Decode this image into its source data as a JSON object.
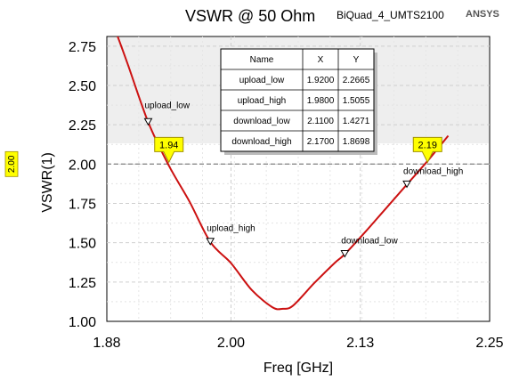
{
  "chart_data": {
    "type": "line",
    "title": "VSWR @ 50 Ohm",
    "subtitle": "BiQuad_4_UMTS2100",
    "brand": "ANSYS",
    "xlabel": "Freq [GHz]",
    "ylabel": "VSWR(1)",
    "xlim": [
      1.88,
      2.25
    ],
    "ylim": [
      1.0,
      2.8
    ],
    "xticks": [
      "1.88",
      "2.00",
      "2.13",
      "2.25"
    ],
    "xtick_values": [
      1.88,
      2.0,
      2.125,
      2.25
    ],
    "yticks": [
      "1.00",
      "1.25",
      "1.50",
      "1.75",
      "2.00",
      "2.25",
      "2.50",
      "2.75"
    ],
    "ytick_values": [
      1.0,
      1.25,
      1.5,
      1.75,
      2.0,
      2.25,
      2.5,
      2.75
    ],
    "grid": true,
    "series": [
      {
        "color": "#cc1111",
        "x": [
          1.89,
          1.9,
          1.92,
          1.94,
          1.96,
          1.98,
          2.0,
          2.02,
          2.04,
          2.05,
          2.06,
          2.08,
          2.1,
          2.11,
          2.13,
          2.15,
          2.17,
          2.19,
          2.21
        ],
        "y": [
          2.82,
          2.64,
          2.2665,
          1.99,
          1.76,
          1.5055,
          1.37,
          1.2,
          1.09,
          1.08,
          1.1,
          1.24,
          1.37,
          1.4271,
          1.57,
          1.72,
          1.8698,
          2.02,
          2.18
        ]
      }
    ],
    "reference_line": {
      "value": 2.0,
      "label": "2.00"
    },
    "crossings": [
      {
        "x": 1.94,
        "label": "1.94"
      },
      {
        "x": 2.19,
        "label": "2.19"
      }
    ],
    "markers": [
      {
        "name": "upload_low",
        "x": 1.92,
        "y": 2.2665
      },
      {
        "name": "upload_high",
        "x": 1.98,
        "y": 1.5055
      },
      {
        "name": "download_low",
        "x": 2.11,
        "y": 1.4271
      },
      {
        "name": "download_high",
        "x": 2.17,
        "y": 1.8698
      }
    ],
    "table": {
      "headers": [
        "Name",
        "X",
        "Y"
      ],
      "rows": [
        [
          "upload_low",
          "1.9200",
          "2.2665"
        ],
        [
          "upload_high",
          "1.9800",
          "1.5055"
        ],
        [
          "download_low",
          "2.1100",
          "1.4271"
        ],
        [
          "download_high",
          "2.1700",
          "1.8698"
        ]
      ]
    }
  }
}
